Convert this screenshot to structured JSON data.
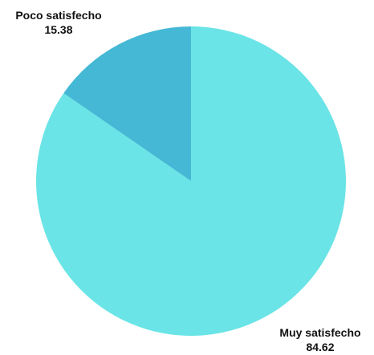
{
  "chart_data": {
    "type": "pie",
    "title": "",
    "slices": [
      {
        "label": "Poco satisfecho",
        "value": 15.38,
        "color": "#45b8d6"
      },
      {
        "label": "Muy satisfecho",
        "value": 84.62,
        "color": "#6ae4e6"
      }
    ],
    "legend": "none"
  }
}
